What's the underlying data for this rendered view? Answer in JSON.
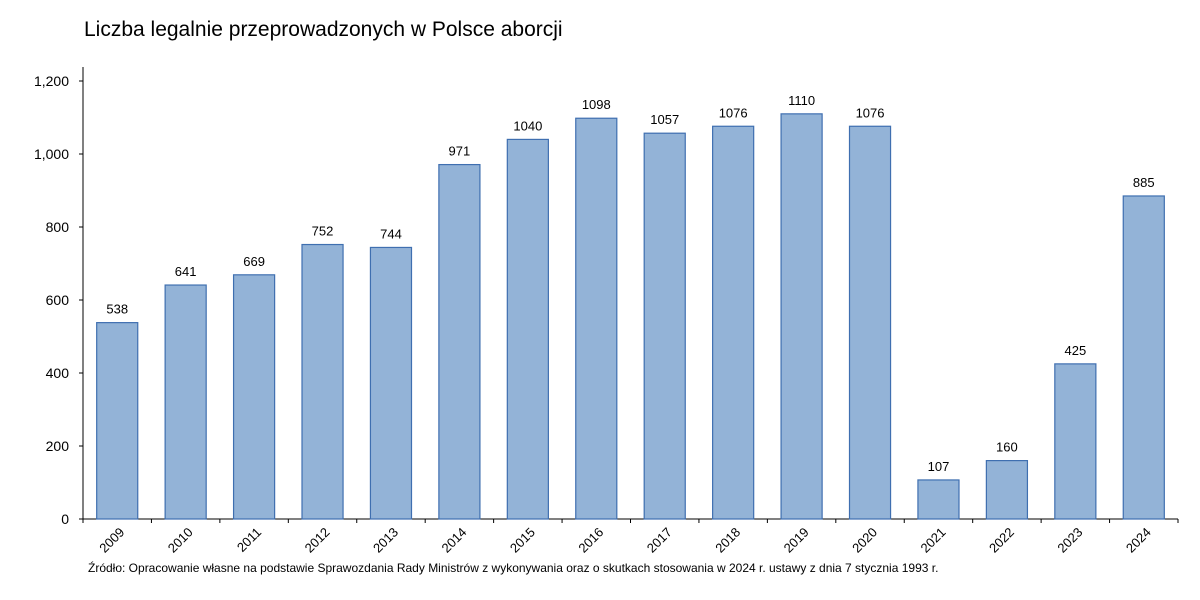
{
  "chart_data": {
    "type": "bar",
    "title": "Liczba legalnie przeprowadzonych w Polsce aborcji",
    "xlabel": "",
    "ylabel": "",
    "categories": [
      "2009",
      "2010",
      "2011",
      "2012",
      "2013",
      "2014",
      "2015",
      "2016",
      "2017",
      "2018",
      "2019",
      "2020",
      "2021",
      "2022",
      "2023",
      "2024"
    ],
    "values": [
      538,
      641,
      669,
      752,
      744,
      971,
      1040,
      1098,
      1057,
      1076,
      1110,
      1076,
      107,
      160,
      425,
      885
    ],
    "data_labels": [
      "538",
      "641",
      "669",
      "752",
      "744",
      "971",
      "1040",
      "1098",
      "1057",
      "1076",
      "1110",
      "1076",
      "107",
      "160",
      "425",
      "885"
    ],
    "ylim": [
      0,
      1200
    ],
    "y_ticks": [
      0,
      200,
      400,
      600,
      800,
      1000,
      1200
    ],
    "y_tick_labels": [
      "0",
      "200",
      "400",
      "600",
      "800",
      "1,000",
      "1,200"
    ],
    "grid": false,
    "legend": "none",
    "bar_color": "#93b3d7",
    "bar_border_color": "#3f6fb0",
    "source": "Źródło: Opracowanie własne na podstawie Sprawozdania Rady Ministrów z wykonywania oraz o skutkach stosowania w 2024 r. ustawy z dnia 7 stycznia 1993 r."
  }
}
